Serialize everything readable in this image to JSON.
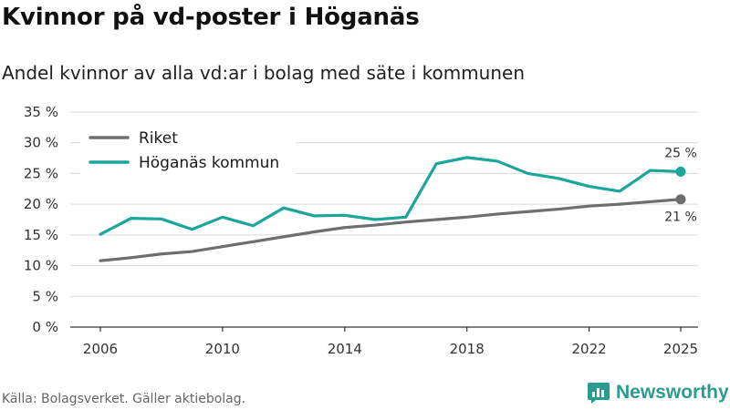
{
  "header": {
    "title": "Kvinnor på vd-poster i Höganäs",
    "subtitle": "Andel kvinnor av alla vd:ar i bolag med säte i kommunen"
  },
  "footer": {
    "source": "Källa: Bolagsverket. Gäller aktiebolag.",
    "brand": "Newsworthy"
  },
  "colors": {
    "riket": "#6e6e6e",
    "kommun": "#1aa69a",
    "grid": "#d9d9d9",
    "axis": "#333333",
    "brand": "#2a9d8f"
  },
  "chart_data": {
    "type": "line",
    "title": "Kvinnor på vd-poster i Höganäs",
    "subtitle": "Andel kvinnor av alla vd:ar i bolag med säte i kommunen",
    "xlabel": "",
    "ylabel": "",
    "x": [
      2006,
      2007,
      2008,
      2009,
      2010,
      2011,
      2012,
      2013,
      2014,
      2015,
      2016,
      2017,
      2018,
      2019,
      2020,
      2021,
      2022,
      2023,
      2024,
      2025
    ],
    "xticks": [
      "2006",
      "2010",
      "2014",
      "2018",
      "2022",
      "2025"
    ],
    "yticks": [
      "0 %",
      "5 %",
      "10 %",
      "15 %",
      "20 %",
      "25 %",
      "30 %",
      "35 %"
    ],
    "ylim": [
      0,
      35
    ],
    "grid": true,
    "legend_position": "top-left",
    "series": [
      {
        "name": "Riket",
        "values": [
          10.8,
          11.3,
          11.9,
          12.3,
          13.1,
          13.9,
          14.7,
          15.5,
          16.2,
          16.6,
          17.1,
          17.5,
          17.9,
          18.4,
          18.8,
          19.2,
          19.7,
          20.0,
          20.4,
          20.8
        ],
        "end_label": "21 %"
      },
      {
        "name": "Höganäs kommun",
        "values": [
          15.1,
          17.7,
          17.6,
          15.9,
          17.9,
          16.5,
          19.4,
          18.1,
          18.2,
          17.5,
          17.9,
          26.6,
          27.6,
          27.0,
          25.0,
          24.2,
          22.9,
          22.1,
          25.5,
          25.3
        ],
        "end_label": "25 %"
      }
    ]
  }
}
